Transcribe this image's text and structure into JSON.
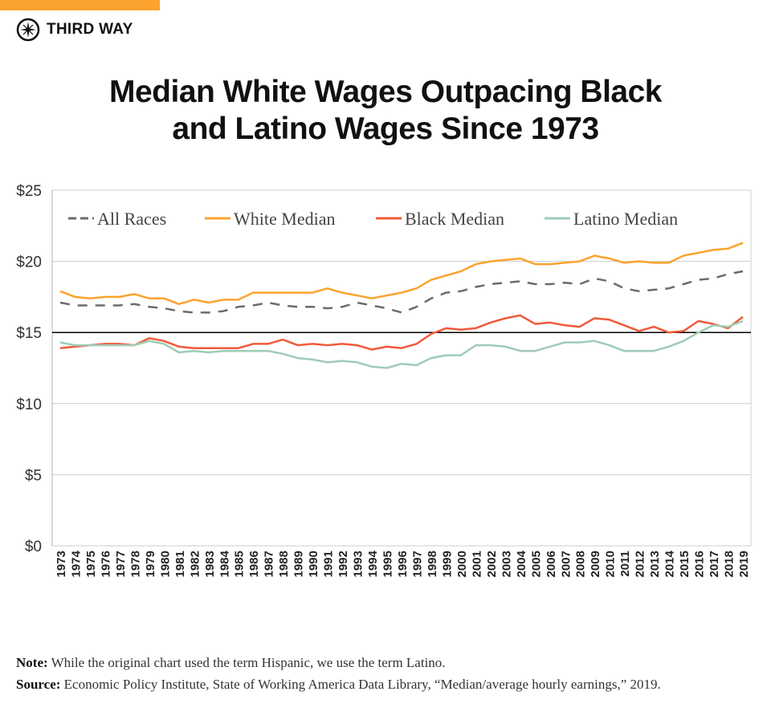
{
  "brand": {
    "name": "THIRD WAY",
    "accent": "#fba32e"
  },
  "title": {
    "line1": "Median White Wages Outpacing Black",
    "line2": "and Latino Wages Since 1973"
  },
  "chart_data": {
    "type": "line",
    "title": "Median White Wages Outpacing Black and Latino Wages Since 1973",
    "xlabel": "",
    "ylabel": "",
    "ylim": [
      0,
      25
    ],
    "yticks": [
      "$0",
      "$5",
      "$10",
      "$15",
      "$20",
      "$25"
    ],
    "ytick_values": [
      0,
      5,
      10,
      15,
      20,
      25
    ],
    "reference_line": 15,
    "grid": "horizontal",
    "legend": "top",
    "x": [
      1973,
      1974,
      1975,
      1976,
      1977,
      1978,
      1979,
      1980,
      1981,
      1982,
      1983,
      1984,
      1985,
      1986,
      1987,
      1988,
      1989,
      1990,
      1991,
      1992,
      1993,
      1994,
      1995,
      1996,
      1997,
      1998,
      1999,
      2000,
      2001,
      2002,
      2003,
      2004,
      2005,
      2006,
      2007,
      2008,
      2009,
      2010,
      2011,
      2012,
      2013,
      2014,
      2015,
      2016,
      2017,
      2018,
      2019
    ],
    "series": [
      {
        "name": "All Races",
        "color": "#6b6b6b",
        "dashed": true,
        "values": [
          17.1,
          16.9,
          16.9,
          16.9,
          16.9,
          17.0,
          16.8,
          16.7,
          16.5,
          16.4,
          16.4,
          16.5,
          16.8,
          16.9,
          17.1,
          16.9,
          16.8,
          16.8,
          16.7,
          16.8,
          17.1,
          16.9,
          16.7,
          16.4,
          16.8,
          17.4,
          17.8,
          17.9,
          18.2,
          18.4,
          18.5,
          18.6,
          18.4,
          18.4,
          18.5,
          18.4,
          18.8,
          18.6,
          18.1,
          17.9,
          18.0,
          18.1,
          18.4,
          18.7,
          18.8,
          19.1,
          19.3
        ]
      },
      {
        "name": "White Median",
        "color": "#fba32e",
        "dashed": false,
        "values": [
          17.9,
          17.5,
          17.4,
          17.5,
          17.5,
          17.7,
          17.4,
          17.4,
          17.0,
          17.3,
          17.1,
          17.3,
          17.3,
          17.8,
          17.8,
          17.8,
          17.8,
          17.8,
          18.1,
          17.8,
          17.6,
          17.4,
          17.6,
          17.8,
          18.1,
          18.7,
          19.0,
          19.3,
          19.8,
          20.0,
          20.1,
          20.2,
          19.8,
          19.8,
          19.9,
          20.0,
          20.4,
          20.2,
          19.9,
          20.0,
          19.9,
          19.9,
          20.4,
          20.6,
          20.8,
          20.9,
          21.3
        ]
      },
      {
        "name": "Black Median",
        "color": "#f15a3a",
        "dashed": false,
        "values": [
          13.9,
          14.0,
          14.1,
          14.2,
          14.2,
          14.1,
          14.6,
          14.4,
          14.0,
          13.9,
          13.9,
          13.9,
          13.9,
          14.2,
          14.2,
          14.5,
          14.1,
          14.2,
          14.1,
          14.2,
          14.1,
          13.8,
          14.0,
          13.9,
          14.2,
          14.9,
          15.3,
          15.2,
          15.3,
          15.7,
          16.0,
          16.2,
          15.6,
          15.7,
          15.5,
          15.4,
          16.0,
          15.9,
          15.5,
          15.1,
          15.4,
          15.0,
          15.1,
          15.8,
          15.6,
          15.3,
          16.1
        ]
      },
      {
        "name": "Latino Median",
        "color": "#9fcbb5",
        "dashed": false,
        "values": [
          14.3,
          14.1,
          14.1,
          14.1,
          14.1,
          14.1,
          14.4,
          14.2,
          13.6,
          13.7,
          13.6,
          13.7,
          13.7,
          13.7,
          13.7,
          13.5,
          13.2,
          13.1,
          12.9,
          13.0,
          12.9,
          12.6,
          12.5,
          12.8,
          12.7,
          13.2,
          13.4,
          13.4,
          14.1,
          14.1,
          14.0,
          13.7,
          13.7,
          14.0,
          14.3,
          14.3,
          14.4,
          14.1,
          13.7,
          13.7,
          13.7,
          14.0,
          14.4,
          15.0,
          15.5,
          15.4,
          15.8
        ]
      }
    ]
  },
  "notes": {
    "note_label": "Note:",
    "note_text": " While the original chart used the term Hispanic, we use the term Latino.",
    "source_label": "Source:",
    "source_text": " Economic Policy Institute, State of Working America Data Library, “Median/average hourly earnings,” 2019."
  }
}
